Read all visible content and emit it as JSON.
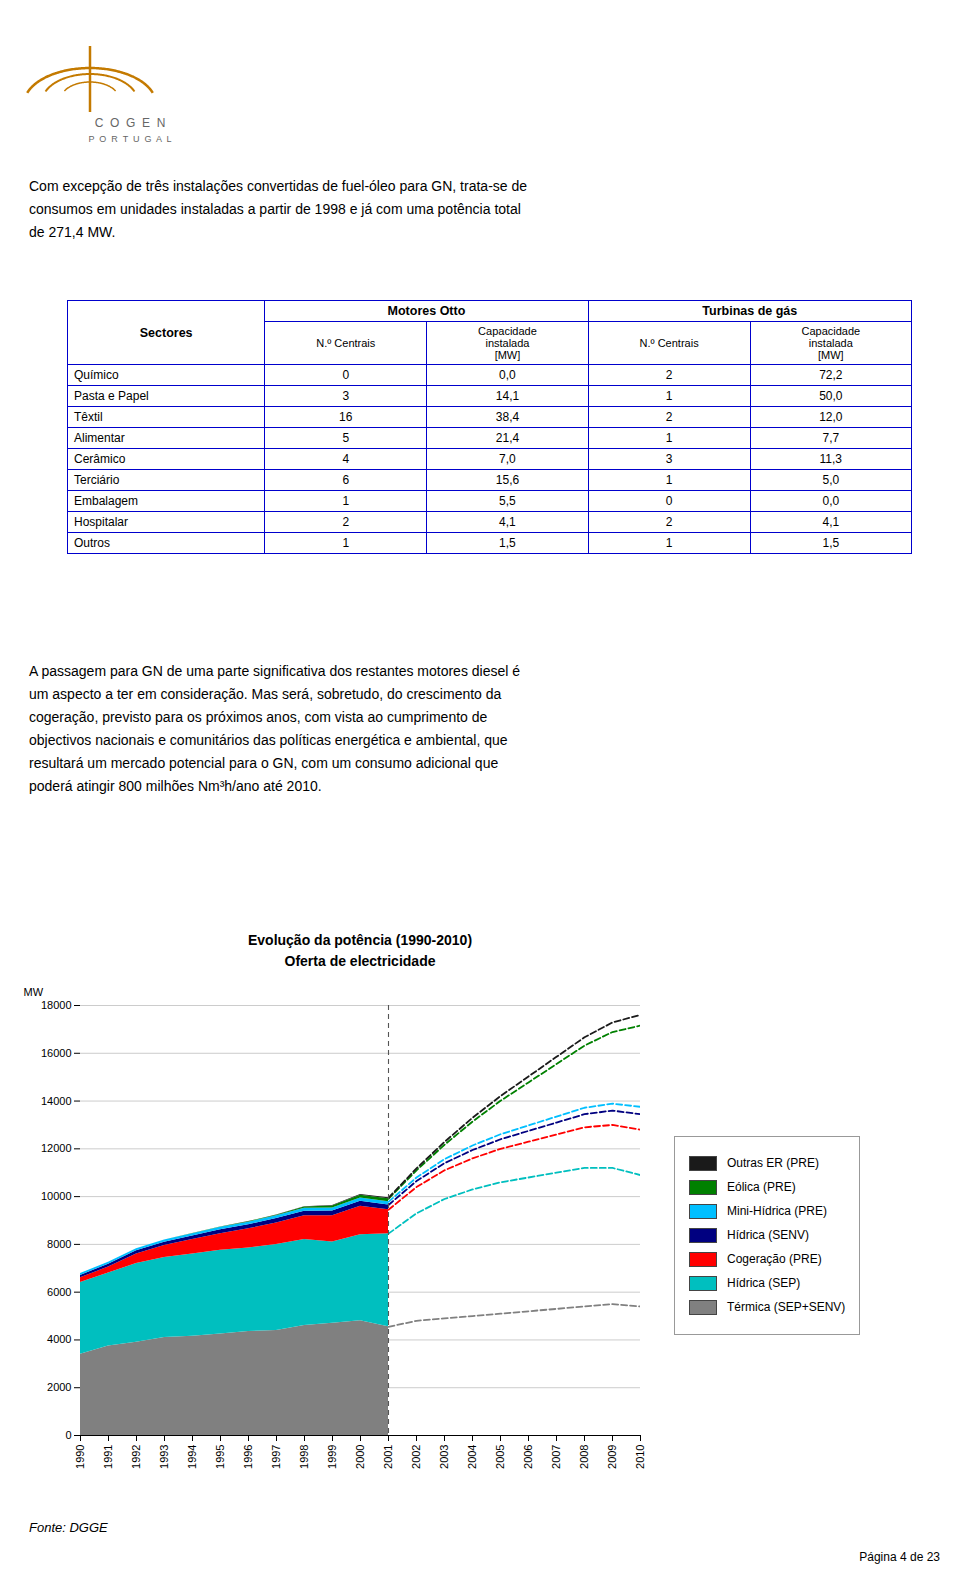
{
  "logo": {
    "color": "#C47A00",
    "lines": [
      "C  O  G  E  N",
      "P  O  R  T  U  G  A  L"
    ]
  },
  "intro_text": "Com excepção de três instalações convertidas de fuel-óleo para GN, trata-se de\nconsumos em unidades instaladas a partir de 1998 e  já com uma potência total\nde 271,4 MW.",
  "table": {
    "border_color": "#0000CD",
    "header": [
      "Sectores",
      "Motores Otto",
      "Turbinas de gás"
    ],
    "subheader": [
      "N.º Centrais",
      "Capacidade\ninstalada\n[MW]",
      "N.º Centrais",
      "Capacidade\ninstalada\n[MW]"
    ],
    "rows": [
      [
        "Químico",
        "0",
        "0,0",
        "2",
        "72,2"
      ],
      [
        "Pasta e Papel",
        "3",
        "14,1",
        "1",
        "50,0"
      ],
      [
        "Têxtil",
        "16",
        "38,4",
        "2",
        "12,0"
      ],
      [
        "Alimentar",
        "5",
        "21,4",
        "1",
        "7,7"
      ],
      [
        "Cerâmico",
        "4",
        "7,0",
        "3",
        "11,3"
      ],
      [
        "Terciário",
        "6",
        "15,6",
        "1",
        "5,0"
      ],
      [
        "Embalagem",
        "1",
        "5,5",
        "0",
        "0,0"
      ],
      [
        "Hospitalar",
        "2",
        "4,1",
        "2",
        "4,1"
      ],
      [
        "Outros",
        "1",
        "1,5",
        "1",
        "1,5"
      ]
    ]
  },
  "paragraph2": "A passagem para GN de uma parte significativa dos restantes motores diesel é\num aspecto a ter em consideração. Mas será, sobretudo, do crescimento da\ncogeração, previsto para os próximos anos, com vista ao cumprimento de\nobjectivos nacionais e comunitários das políticas energética e ambiental, que\nresultará um mercado potencial para o GN, com um consumo adicional que\npoderá atingir 800 milhões Nm³h/ano até 2010.",
  "chart_data": {
    "type": "area",
    "title": "Evolução da potência (1990-2010)",
    "subtitle": "Oferta de electricidade",
    "ylabel": "MW",
    "stacked": true,
    "grid": true,
    "legend": "right",
    "x": [
      1990,
      1991,
      1992,
      1993,
      1994,
      1995,
      1996,
      1997,
      1998,
      1999,
      2000,
      2001,
      2002,
      2003,
      2004,
      2005,
      2006,
      2007,
      2008,
      2009,
      2010
    ],
    "xlim": [
      1990,
      2010
    ],
    "xticks": [
      1990,
      1991,
      1992,
      1993,
      1994,
      1995,
      1996,
      1997,
      1998,
      1999,
      2000,
      2001,
      2002,
      2003,
      2004,
      2005,
      2006,
      2007,
      2008,
      2009,
      2010
    ],
    "ylim": [
      0,
      18000
    ],
    "yticks": [
      0,
      2000,
      4000,
      6000,
      8000,
      10000,
      12000,
      14000,
      16000,
      18000
    ],
    "vline": 2001,
    "series": [
      {
        "name": "Térmica (SEP+SENV)",
        "type": "area",
        "color": "#808080",
        "values": [
          3400,
          3750,
          3900,
          4100,
          4150,
          4250,
          4350,
          4400,
          4600,
          4700,
          4800,
          4550,
          null,
          null,
          null,
          null,
          null,
          null,
          null,
          null,
          null
        ]
      },
      {
        "name": "Hídrica (SEP)",
        "type": "area",
        "color": "#00BFBF",
        "values": [
          3000,
          3050,
          3300,
          3350,
          3450,
          3500,
          3500,
          3600,
          3600,
          3400,
          3600,
          3900,
          null,
          null,
          null,
          null,
          null,
          null,
          null,
          null,
          null
        ]
      },
      {
        "name": "Cogeração (PRE)",
        "type": "area",
        "color": "#FF0000",
        "values": [
          200,
          250,
          400,
          500,
          600,
          700,
          800,
          900,
          1000,
          1100,
          1200,
          1000,
          null,
          null,
          null,
          null,
          null,
          null,
          null,
          null,
          null
        ]
      },
      {
        "name": "Hídrica (SENV)",
        "type": "area",
        "color": "#000080",
        "values": [
          100,
          120,
          130,
          140,
          150,
          160,
          170,
          180,
          190,
          200,
          210,
          200,
          null,
          null,
          null,
          null,
          null,
          null,
          null,
          null,
          null
        ]
      },
      {
        "name": "Mini-Hídrica (PRE)",
        "type": "area",
        "color": "#00BFFF",
        "values": [
          80,
          85,
          90,
          95,
          100,
          105,
          110,
          115,
          120,
          125,
          130,
          130,
          null,
          null,
          null,
          null,
          null,
          null,
          null,
          null,
          null
        ]
      },
      {
        "name": "Eólica (PRE)",
        "type": "area",
        "color": "#008000",
        "values": [
          0,
          0,
          0,
          0,
          5,
          10,
          20,
          30,
          50,
          80,
          120,
          130,
          null,
          null,
          null,
          null,
          null,
          null,
          null,
          null,
          null
        ]
      },
      {
        "name": "Outras ER (PRE)",
        "type": "area",
        "color": "#1a1a1a",
        "values": [
          0,
          0,
          0,
          0,
          0,
          0,
          5,
          10,
          15,
          20,
          30,
          40,
          null,
          null,
          null,
          null,
          null,
          null,
          null,
          null,
          null
        ]
      },
      {
        "name": "Térmica (SEP+SENV)",
        "type": "line",
        "line_style": "dashed",
        "color": "#808080",
        "values": [
          null,
          null,
          null,
          null,
          null,
          null,
          null,
          null,
          null,
          null,
          null,
          4550,
          4800,
          4900,
          5000,
          5100,
          5200,
          5300,
          5400,
          5500,
          5400
        ]
      },
      {
        "name": "Hídrica (SEP)",
        "type": "line",
        "line_style": "dashed",
        "color": "#00BFBF",
        "values": [
          null,
          null,
          null,
          null,
          null,
          null,
          null,
          null,
          null,
          null,
          null,
          3900,
          4500,
          5000,
          5300,
          5500,
          5600,
          5700,
          5800,
          5700,
          5500
        ]
      },
      {
        "name": "Cogeração (PRE)",
        "type": "line",
        "line_style": "dashed",
        "color": "#FF0000",
        "values": [
          null,
          null,
          null,
          null,
          null,
          null,
          null,
          null,
          null,
          null,
          null,
          1000,
          1100,
          1200,
          1300,
          1400,
          1500,
          1600,
          1700,
          1800,
          1900
        ]
      },
      {
        "name": "Hídrica (SENV)",
        "type": "line",
        "line_style": "dashed",
        "color": "#000080",
        "values": [
          null,
          null,
          null,
          null,
          null,
          null,
          null,
          null,
          null,
          null,
          null,
          200,
          250,
          300,
          350,
          400,
          450,
          500,
          550,
          600,
          650
        ]
      },
      {
        "name": "Mini-Hídrica (PRE)",
        "type": "line",
        "line_style": "dashed",
        "color": "#00BFFF",
        "values": [
          null,
          null,
          null,
          null,
          null,
          null,
          null,
          null,
          null,
          null,
          null,
          130,
          150,
          170,
          190,
          210,
          230,
          250,
          270,
          290,
          310
        ]
      },
      {
        "name": "Eólica (PRE)",
        "type": "line",
        "line_style": "dashed",
        "color": "#008000",
        "values": [
          null,
          null,
          null,
          null,
          null,
          null,
          null,
          null,
          null,
          null,
          null,
          130,
          300,
          600,
          1000,
          1400,
          1800,
          2200,
          2600,
          3000,
          3400
        ]
      },
      {
        "name": "Outras ER (PRE)",
        "type": "line",
        "line_style": "dashed",
        "color": "#1a1a1a",
        "values": [
          null,
          null,
          null,
          null,
          null,
          null,
          null,
          null,
          null,
          null,
          null,
          40,
          80,
          120,
          160,
          200,
          250,
          300,
          350,
          400,
          450
        ]
      }
    ]
  },
  "source": "Fonte: DGGE",
  "footer": "Página 4 de 23"
}
